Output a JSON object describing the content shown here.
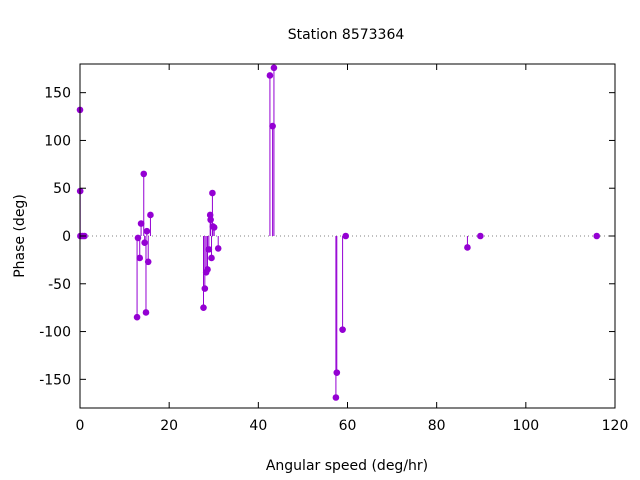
{
  "chart_data": {
    "type": "scatter",
    "style": "impulses-with-points",
    "title": "Station 8573364",
    "xlabel": "Angular speed (deg/hr)",
    "ylabel": "Phase (deg)",
    "xlim": [
      0,
      120
    ],
    "ylim": [
      -180,
      180
    ],
    "xticks": [
      "0",
      "20",
      "40",
      "60",
      "80",
      "100",
      "120"
    ],
    "yticks": [
      "-150",
      "-100",
      "-50",
      "0",
      "50",
      "100",
      "150"
    ],
    "zero_line": "dotted",
    "grid": false,
    "legend": "none",
    "color": "#9400d3",
    "series": [
      {
        "points": [
          {
            "x": 0.0,
            "y": 132
          },
          {
            "x": 0.04,
            "y": 47
          },
          {
            "x": 0.08,
            "y": 0
          },
          {
            "x": 0.55,
            "y": 0
          },
          {
            "x": 1.0,
            "y": 0
          },
          {
            "x": 12.8,
            "y": -85
          },
          {
            "x": 13.0,
            "y": -2
          },
          {
            "x": 13.4,
            "y": -23
          },
          {
            "x": 13.7,
            "y": 13
          },
          {
            "x": 14.3,
            "y": 65
          },
          {
            "x": 14.5,
            "y": -7
          },
          {
            "x": 14.8,
            "y": -80
          },
          {
            "x": 15.0,
            "y": 5
          },
          {
            "x": 15.3,
            "y": -27
          },
          {
            "x": 15.8,
            "y": 22
          },
          {
            "x": 27.7,
            "y": -75
          },
          {
            "x": 28.0,
            "y": -55
          },
          {
            "x": 28.3,
            "y": -38
          },
          {
            "x": 28.6,
            "y": -35
          },
          {
            "x": 28.9,
            "y": -14
          },
          {
            "x": 29.2,
            "y": 22
          },
          {
            "x": 29.3,
            "y": 17
          },
          {
            "x": 29.5,
            "y": -23
          },
          {
            "x": 29.7,
            "y": 45
          },
          {
            "x": 29.8,
            "y": 10
          },
          {
            "x": 30.1,
            "y": 9
          },
          {
            "x": 31.0,
            "y": -13
          },
          {
            "x": 42.6,
            "y": 168
          },
          {
            "x": 43.2,
            "y": 115
          },
          {
            "x": 43.5,
            "y": 176
          },
          {
            "x": 57.4,
            "y": -169
          },
          {
            "x": 57.6,
            "y": -143
          },
          {
            "x": 58.9,
            "y": -98
          },
          {
            "x": 59.6,
            "y": 0
          },
          {
            "x": 86.9,
            "y": -12
          },
          {
            "x": 89.8,
            "y": 0
          },
          {
            "x": 115.9,
            "y": 0
          }
        ]
      }
    ]
  }
}
